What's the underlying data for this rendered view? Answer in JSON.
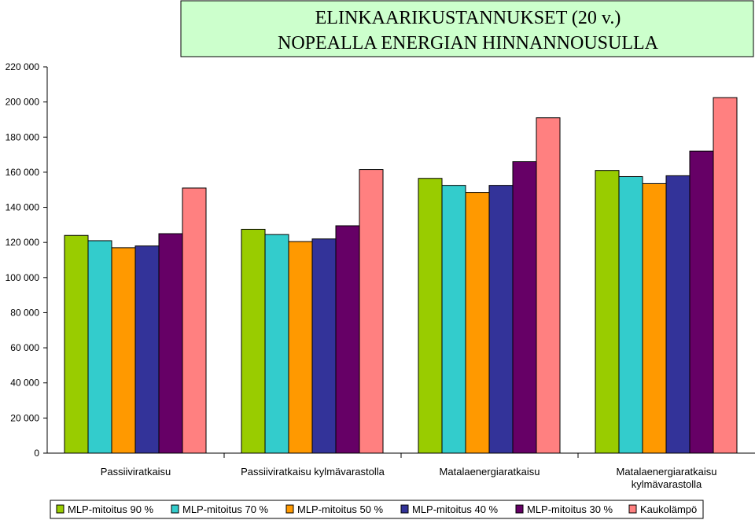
{
  "chart_data": {
    "type": "bar",
    "title_lines": [
      "ELINKAARIKUSTANNUKSET (20 v.)",
      "NOPEALLA ENERGIAN HINNANNOUSULLA"
    ],
    "categories": [
      [
        "Passiiviratkaisu"
      ],
      [
        "Passiiviratkaisu kylmävarastolla"
      ],
      [
        "Matalaenergiaratkaisu"
      ],
      [
        "Matalaenergiaratkaisu",
        "kylmävarastolla"
      ]
    ],
    "ylim": [
      0,
      220000
    ],
    "yticks": [
      0,
      20000,
      40000,
      60000,
      80000,
      100000,
      120000,
      140000,
      160000,
      180000,
      200000,
      220000
    ],
    "ytick_labels": [
      "0",
      "20 000",
      "40 000",
      "60 000",
      "80 000",
      "100 000",
      "120 000",
      "140 000",
      "160 000",
      "180 000",
      "200 000",
      "220 000"
    ],
    "grid": false,
    "legend_position": "bottom",
    "series": [
      {
        "name": "MLP-mitoitus 90 %",
        "color": "#99cc00",
        "values": [
          124000,
          127500,
          156500,
          161000
        ]
      },
      {
        "name": "MLP-mitoitus 70 %",
        "color": "#33cccc",
        "values": [
          121000,
          124500,
          152500,
          157500
        ]
      },
      {
        "name": "MLP-mitoitus 50 %",
        "color": "#ff9900",
        "values": [
          117000,
          120500,
          148500,
          153500
        ]
      },
      {
        "name": "MLP-mitoitus 40 %",
        "color": "#333399",
        "values": [
          118000,
          122000,
          152500,
          158000
        ]
      },
      {
        "name": "MLP-mitoitus 30 %",
        "color": "#660066",
        "values": [
          125000,
          129500,
          166000,
          172000
        ]
      },
      {
        "name": "Kaukolämpö",
        "color": "#ff8080",
        "values": [
          151000,
          161500,
          191000,
          202500
        ]
      }
    ],
    "title_box_color": "#ccffcc"
  }
}
